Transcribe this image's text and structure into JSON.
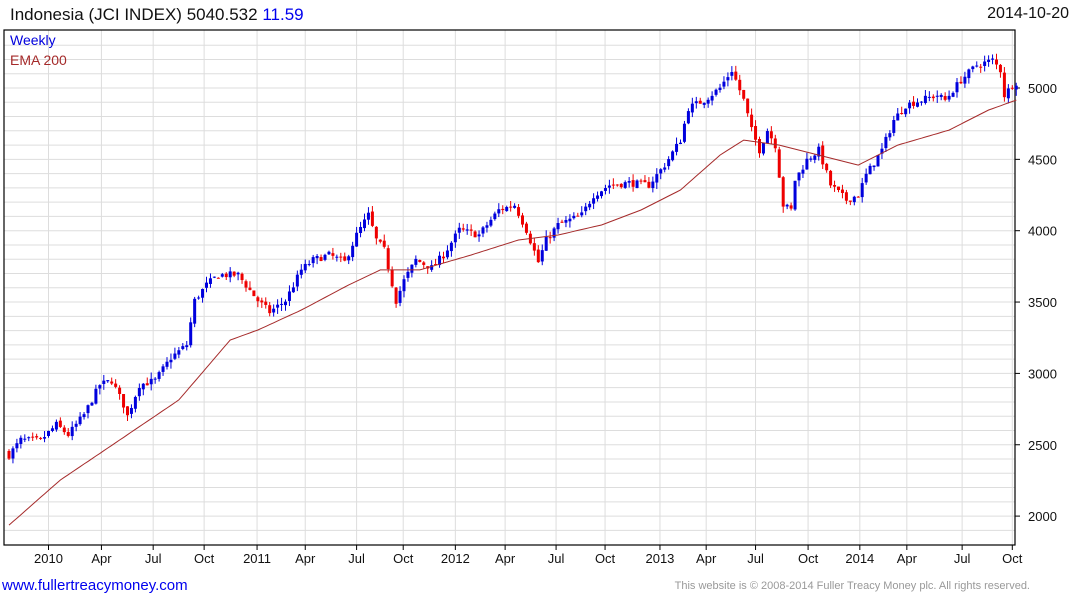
{
  "header": {
    "name": "Indonesia (JCI INDEX)",
    "last": "5040.532",
    "change": "11.59",
    "date": "2014-10-20"
  },
  "legend": {
    "period": "Weekly",
    "ema": "EMA 200"
  },
  "footer": {
    "site": "www.fullertreacymoney.com",
    "copyright": "This website is © 2008-2014 Fuller Treacy Money plc. All rights reserved."
  },
  "colors": {
    "up": "#0000dd",
    "down": "#ee0000",
    "ema": "#a52a2a",
    "grid": "#dddddd"
  },
  "chart_data": {
    "type": "candlestick",
    "title": "Indonesia (JCI INDEX)",
    "x_unit": "week index",
    "weeks": 256,
    "ylim": [
      1800,
      5350
    ],
    "y_ticks": [
      2000,
      2500,
      3000,
      3500,
      4000,
      4500,
      5000
    ],
    "x_ticks": [
      {
        "label": "2010",
        "week": 10
      },
      {
        "label": "Apr",
        "week": 23.4
      },
      {
        "label": "Jul",
        "week": 36.5
      },
      {
        "label": "Oct",
        "week": 49.4
      },
      {
        "label": "2011",
        "week": 62.8
      },
      {
        "label": "Apr",
        "week": 75
      },
      {
        "label": "Jul",
        "week": 88
      },
      {
        "label": "Oct",
        "week": 99.8
      },
      {
        "label": "2012",
        "week": 113
      },
      {
        "label": "Apr",
        "week": 125.6
      },
      {
        "label": "Jul",
        "week": 138.5
      },
      {
        "label": "Oct",
        "week": 150.9
      },
      {
        "label": "2013",
        "week": 164.8
      },
      {
        "label": "Apr",
        "week": 176.5
      },
      {
        "label": "Jul",
        "week": 189
      },
      {
        "label": "Oct",
        "week": 202.3
      },
      {
        "label": "2014",
        "week": 215.4
      },
      {
        "label": "Apr",
        "week": 227.3
      },
      {
        "label": "Jul",
        "week": 241.3
      },
      {
        "label": "Oct",
        "week": 254
      }
    ],
    "close_waypoints": [
      [
        0,
        2428
      ],
      [
        3,
        2533
      ],
      [
        8,
        2530
      ],
      [
        12,
        2640
      ],
      [
        15,
        2570
      ],
      [
        19,
        2710
      ],
      [
        23,
        2920
      ],
      [
        26,
        2950
      ],
      [
        29,
        2780
      ],
      [
        30,
        2700
      ],
      [
        33,
        2920
      ],
      [
        37,
        2950
      ],
      [
        41,
        3110
      ],
      [
        45,
        3200
      ],
      [
        47,
        3510
      ],
      [
        50,
        3620
      ],
      [
        53,
        3690
      ],
      [
        58,
        3690
      ],
      [
        63,
        3510
      ],
      [
        66,
        3430
      ],
      [
        70,
        3510
      ],
      [
        74,
        3725
      ],
      [
        77,
        3795
      ],
      [
        81,
        3830
      ],
      [
        85,
        3780
      ],
      [
        88,
        3970
      ],
      [
        91,
        4110
      ],
      [
        93,
        3935
      ],
      [
        95,
        3865
      ],
      [
        98,
        3510
      ],
      [
        100,
        3650
      ],
      [
        103,
        3795
      ],
      [
        107,
        3740
      ],
      [
        110,
        3830
      ],
      [
        114,
        4005
      ],
      [
        119,
        3970
      ],
      [
        124,
        4145
      ],
      [
        128,
        4180
      ],
      [
        131,
        4005
      ],
      [
        134,
        3780
      ],
      [
        136,
        3935
      ],
      [
        139,
        4040
      ],
      [
        145,
        4110
      ],
      [
        148,
        4250
      ],
      [
        152,
        4320
      ],
      [
        157,
        4335
      ],
      [
        162,
        4320
      ],
      [
        166,
        4460
      ],
      [
        170,
        4635
      ],
      [
        172,
        4860
      ],
      [
        176,
        4915
      ],
      [
        180,
        5000
      ],
      [
        183,
        5125
      ],
      [
        186,
        4915
      ],
      [
        188,
        4705
      ],
      [
        190,
        4565
      ],
      [
        192,
        4705
      ],
      [
        194,
        4600
      ],
      [
        196,
        4180
      ],
      [
        198,
        4145
      ],
      [
        199,
        4355
      ],
      [
        202,
        4495
      ],
      [
        205,
        4565
      ],
      [
        208,
        4320
      ],
      [
        212,
        4215
      ],
      [
        215,
        4250
      ],
      [
        217,
        4390
      ],
      [
        221,
        4565
      ],
      [
        224,
        4775
      ],
      [
        227,
        4880
      ],
      [
        231,
        4915
      ],
      [
        235,
        4950
      ],
      [
        237,
        4915
      ],
      [
        241,
        5055
      ],
      [
        245,
        5160
      ],
      [
        249,
        5195
      ],
      [
        251,
        5125
      ],
      [
        252,
        4950
      ],
      [
        254,
        5020
      ],
      [
        255,
        5040
      ]
    ],
    "ema200_waypoints": [
      [
        0,
        1937
      ],
      [
        13,
        2253
      ],
      [
        28,
        2533
      ],
      [
        43,
        2814
      ],
      [
        56,
        3234
      ],
      [
        63,
        3304
      ],
      [
        74,
        3444
      ],
      [
        86,
        3620
      ],
      [
        94,
        3725
      ],
      [
        104,
        3725
      ],
      [
        117,
        3830
      ],
      [
        129,
        3935
      ],
      [
        139,
        3970
      ],
      [
        150,
        4040
      ],
      [
        160,
        4145
      ],
      [
        170,
        4285
      ],
      [
        180,
        4530
      ],
      [
        186,
        4635
      ],
      [
        195,
        4600
      ],
      [
        205,
        4530
      ],
      [
        215,
        4460
      ],
      [
        225,
        4600
      ],
      [
        238,
        4705
      ],
      [
        248,
        4846
      ],
      [
        255,
        4915
      ]
    ]
  }
}
